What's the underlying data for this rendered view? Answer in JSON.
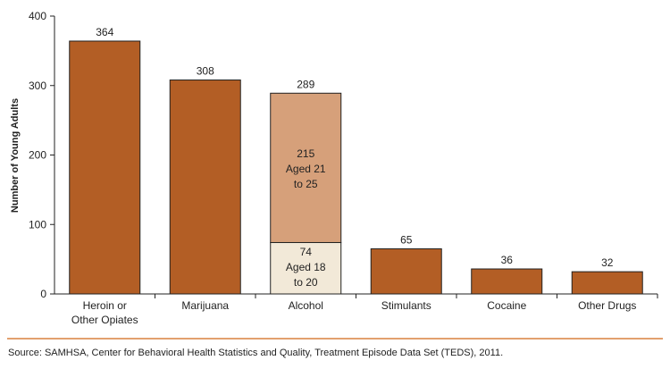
{
  "chart_data": {
    "type": "bar",
    "stacked": true,
    "ylabel": "Number of Young Adults",
    "ylim": [
      0,
      400
    ],
    "yticks": [
      0,
      100,
      200,
      300,
      400
    ],
    "categories": [
      "Heroin or\nOther Opiates",
      "Marijuana",
      "Alcohol",
      "Stimulants",
      "Cocaine",
      "Other Drugs"
    ],
    "totals": [
      364,
      308,
      289,
      65,
      36,
      32
    ],
    "alcohol_breakdown": [
      {
        "name": "Aged 18\nto 20",
        "value": 74,
        "color": "#F2E9D8"
      },
      {
        "name": "Aged 21\nto 25",
        "value": 215,
        "color": "#D6A07A"
      }
    ],
    "bar_color": "#B35E25",
    "grid": false
  },
  "source": "Source: SAMHSA, Center for Behavioral Health Statistics and Quality, Treatment Episode Data Set (TEDS), 2011.",
  "colors": {
    "divider": "#D9803F"
  }
}
